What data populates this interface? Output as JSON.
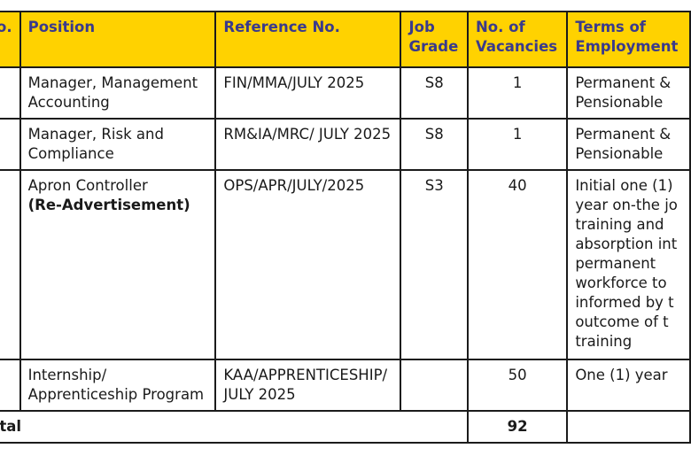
{
  "table": {
    "headers": {
      "no": "o.",
      "position": "Position",
      "reference": "Reference No.",
      "grade": "Job\nGrade",
      "vacancies": "No. of\nVacancies",
      "terms": "Terms of\nEmployment"
    },
    "rows": [
      {
        "position": "Manager, Management Accounting",
        "note": "",
        "reference": "FIN/MMA/JULY 2025",
        "grade": "S8",
        "vacancies": "1",
        "terms": "Permanent &\nPensionable"
      },
      {
        "position": "Manager, Risk and Compliance",
        "note": "",
        "reference": "RM&IA/MRC/ JULY 2025",
        "grade": "S8",
        "vacancies": "1",
        "terms": "Permanent &\nPensionable"
      },
      {
        "position": "Apron Controller",
        "note": "(Re-Advertisement)",
        "reference": "OPS/APR/JULY/2025",
        "grade": "S3",
        "vacancies": "40",
        "terms": "Initial one (1)\nyear on-the jo\ntraining and\nabsorption int\npermanent\nworkforce to\ninformed by t\noutcome of t\ntraining"
      },
      {
        "position": "Internship/ Apprenticeship Program",
        "note": "",
        "reference": "KAA/APPRENTICESHIP/\nJULY 2025",
        "grade": "",
        "vacancies": "50",
        "terms": "One (1) year"
      }
    ],
    "total": {
      "label": "otal",
      "value": "92"
    }
  }
}
